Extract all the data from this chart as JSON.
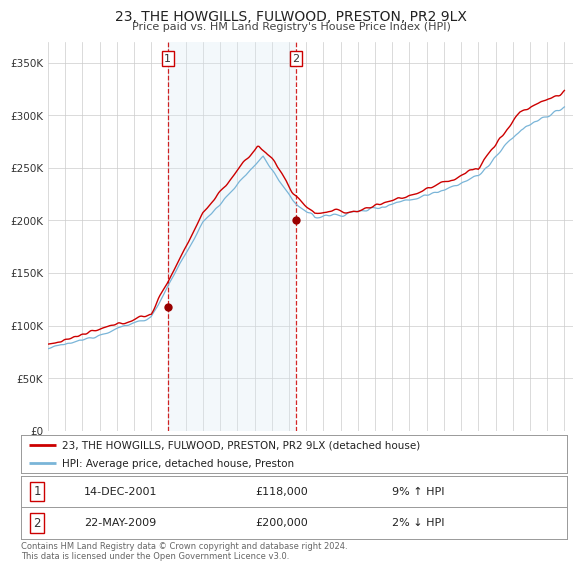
{
  "title": "23, THE HOWGILLS, FULWOOD, PRESTON, PR2 9LX",
  "subtitle": "Price paid vs. HM Land Registry's House Price Index (HPI)",
  "legend_line1": "23, THE HOWGILLS, FULWOOD, PRESTON, PR2 9LX (detached house)",
  "legend_line2": "HPI: Average price, detached house, Preston",
  "sale1_date": "14-DEC-2001",
  "sale1_price": 118000,
  "sale1_hpi": "9% ↑ HPI",
  "sale2_date": "22-MAY-2009",
  "sale2_price": 200000,
  "sale2_hpi": "2% ↓ HPI",
  "footnote": "Contains HM Land Registry data © Crown copyright and database right 2024.\nThis data is licensed under the Open Government Licence v3.0.",
  "hpi_color": "#7ab5d8",
  "price_color": "#cc0000",
  "marker_color": "#990000",
  "shade_color": "#daeaf5",
  "vline_color": "#cc0000",
  "background_color": "#ffffff",
  "grid_color": "#cccccc",
  "ylim": [
    0,
    370000
  ],
  "xlim_start": 1995.0,
  "xlim_end": 2025.5
}
